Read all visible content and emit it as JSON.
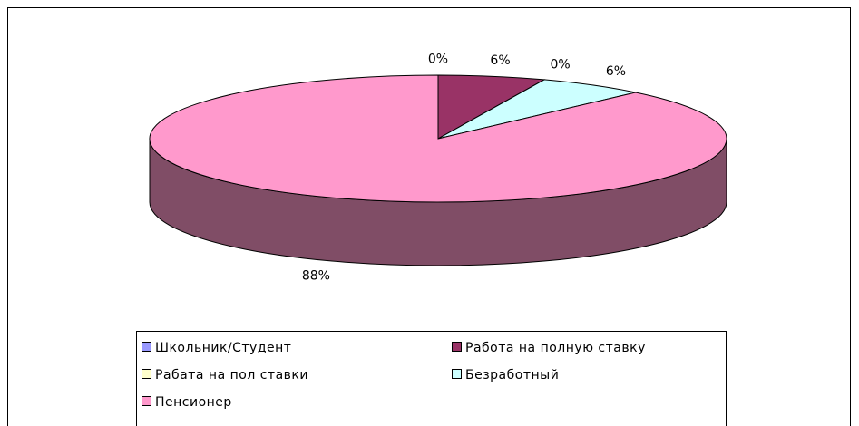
{
  "chart_data": {
    "type": "pie3d",
    "categories": [
      "Школьник/Студент",
      "Работа на полную ставку",
      "Рабата на пол ставки",
      "Безработный",
      "Пенсионер"
    ],
    "values": [
      0,
      6,
      0,
      6,
      88
    ],
    "value_labels": [
      "0%",
      "6%",
      "0%",
      "6%",
      "88%"
    ],
    "colors": [
      "#9999ff",
      "#993366",
      "#ffffcc",
      "#ccffff",
      "#ff99cc"
    ],
    "legend": "bottom"
  }
}
